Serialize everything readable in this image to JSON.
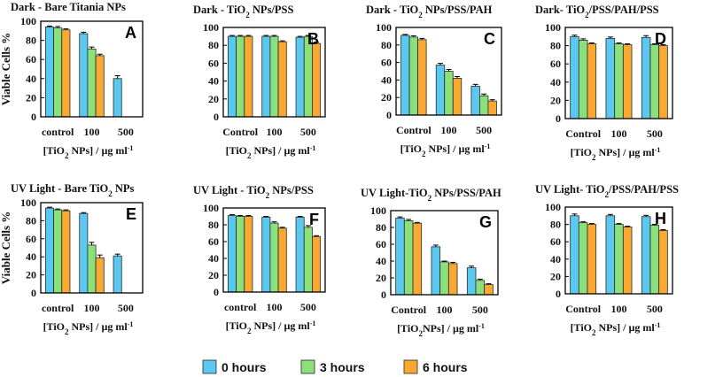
{
  "figure": {
    "series_names": [
      "0 hours",
      "3 hours",
      "6 hours"
    ],
    "series_colors": [
      "#5bc8f0",
      "#8ce07a",
      "#f9a832"
    ],
    "ylabel": "Viable Cells %"
  },
  "chart_data": [
    {
      "id": "A",
      "type": "bar",
      "title": "Dark - Bare Titania NPs",
      "label": "A",
      "categories": [
        "control",
        "100",
        "500"
      ],
      "xlabel_main": "[TiO",
      "xlabel_sub": "2",
      "xlabel_rest": " NPs] / µg ml",
      "xlabel_sup": "-1",
      "ylim": [
        0,
        100
      ],
      "yticks": [
        0,
        20,
        40,
        60,
        80,
        100
      ],
      "series": [
        {
          "name": "0 hours",
          "values": [
            94,
            87,
            40
          ],
          "errors": [
            1,
            1.5,
            3
          ]
        },
        {
          "name": "3 hours",
          "values": [
            93,
            71,
            null
          ],
          "errors": [
            1.5,
            2,
            0
          ]
        },
        {
          "name": "6 hours",
          "values": [
            91,
            64,
            null
          ],
          "errors": [
            1,
            1.5,
            0
          ]
        }
      ]
    },
    {
      "id": "B",
      "type": "bar",
      "title": "Dark - TiO2 NPs/PSS",
      "label": "B",
      "categories": [
        "Control",
        "100",
        "500"
      ],
      "xlabel_main": "[TiO",
      "xlabel_sub": "2",
      "xlabel_rest": " NPs] / µg ml",
      "xlabel_sup": "-1",
      "ylim": [
        0,
        100
      ],
      "yticks": [
        0,
        20,
        40,
        60,
        80,
        100
      ],
      "series": [
        {
          "name": "0 hours",
          "values": [
            90,
            90,
            89
          ],
          "errors": [
            1,
            1,
            1
          ]
        },
        {
          "name": "3 hours",
          "values": [
            90,
            90,
            90
          ],
          "errors": [
            1,
            1,
            1
          ]
        },
        {
          "name": "6 hours",
          "values": [
            90,
            84,
            82
          ],
          "errors": [
            1,
            1,
            1.5
          ]
        }
      ]
    },
    {
      "id": "C",
      "type": "bar",
      "title": "Dark - TiO2 NPs/PSS/PAH",
      "label": "C",
      "categories": [
        "Control",
        "100",
        "500"
      ],
      "xlabel_main": "[TiO",
      "xlabel_sub": "2",
      "xlabel_rest": " NPs] / µg ml",
      "xlabel_sup": "-1",
      "ylim": [
        0,
        100
      ],
      "yticks": [
        0,
        20,
        40,
        60,
        80,
        100
      ],
      "series": [
        {
          "name": "0 hours",
          "values": [
            91,
            57,
            33
          ],
          "errors": [
            1,
            2,
            2
          ]
        },
        {
          "name": "3 hours",
          "values": [
            89,
            50,
            22
          ],
          "errors": [
            1.5,
            2,
            2
          ]
        },
        {
          "name": "6 hours",
          "values": [
            86,
            42,
            16
          ],
          "errors": [
            1.5,
            2,
            1.5
          ]
        }
      ]
    },
    {
      "id": "D",
      "type": "bar",
      "title": "Dark- TiO2/PSS/PAH/PSS",
      "label": "D",
      "categories": [
        "Control",
        "100",
        "500"
      ],
      "xlabel_main": "[TiO",
      "xlabel_sub": "2",
      "xlabel_rest": " NPs] / µg ml",
      "xlabel_sup": "-1",
      "ylim": [
        0,
        100
      ],
      "yticks": [
        0,
        20,
        40,
        60,
        80,
        100
      ],
      "series": [
        {
          "name": "0 hours",
          "values": [
            90,
            88,
            89
          ],
          "errors": [
            1.5,
            1.5,
            2
          ]
        },
        {
          "name": "3 hours",
          "values": [
            86,
            82,
            81
          ],
          "errors": [
            1.5,
            1,
            1
          ]
        },
        {
          "name": "6 hours",
          "values": [
            82,
            81,
            80
          ],
          "errors": [
            1,
            1,
            1
          ]
        }
      ]
    },
    {
      "id": "E",
      "type": "bar",
      "title": "UV Light - Bare TiO2 NPs",
      "label": "E",
      "categories": [
        "control",
        "100",
        "500"
      ],
      "xlabel_main": "[TiO",
      "xlabel_sub": "2",
      "xlabel_rest": " NPs] / µg ml",
      "xlabel_sup": "-1",
      "ylim": [
        0,
        100
      ],
      "yticks": [
        0,
        20,
        40,
        60,
        80,
        100
      ],
      "series": [
        {
          "name": "0 hours",
          "values": [
            94,
            88,
            41
          ],
          "errors": [
            1,
            1,
            2
          ]
        },
        {
          "name": "3 hours",
          "values": [
            92,
            53,
            null
          ],
          "errors": [
            1,
            3,
            0
          ]
        },
        {
          "name": "6 hours",
          "values": [
            91,
            39,
            null
          ],
          "errors": [
            1,
            3,
            0
          ]
        }
      ]
    },
    {
      "id": "F",
      "type": "bar",
      "title": "UV Light - TiO2 NPs/PSS",
      "label": "F",
      "categories": [
        "control",
        "100",
        "500"
      ],
      "xlabel_main": "[TiO",
      "xlabel_sub": "2",
      "xlabel_rest": " NPs] / µg ml",
      "xlabel_sup": "-1",
      "ylim": [
        0,
        100
      ],
      "yticks": [
        0,
        20,
        40,
        60,
        80,
        100
      ],
      "series": [
        {
          "name": "0 hours",
          "values": [
            91,
            89,
            89
          ],
          "errors": [
            1,
            1,
            1
          ]
        },
        {
          "name": "3 hours",
          "values": [
            90,
            82,
            77
          ],
          "errors": [
            1,
            1.5,
            2
          ]
        },
        {
          "name": "6 hours",
          "values": [
            90,
            76,
            66
          ],
          "errors": [
            1,
            1,
            1
          ]
        }
      ]
    },
    {
      "id": "G",
      "type": "bar",
      "title": "UV Light-TiO2 NPs/PSS/PAH",
      "label": "G",
      "categories": [
        "Control",
        "100",
        "500"
      ],
      "xlabel_main": "[TiO",
      "xlabel_sub": "2",
      "xlabel_rest": "NPs] / µg ml",
      "xlabel_sup": "-1",
      "ylim": [
        0,
        100
      ],
      "yticks": [
        0,
        20,
        40,
        60,
        80,
        100
      ],
      "series": [
        {
          "name": "0 hours",
          "values": [
            91,
            57,
            32
          ],
          "errors": [
            1.5,
            2,
            2
          ]
        },
        {
          "name": "3 hours",
          "values": [
            88,
            39,
            17
          ],
          "errors": [
            1.5,
            1,
            1.5
          ]
        },
        {
          "name": "6 hours",
          "values": [
            85,
            37,
            12
          ],
          "errors": [
            1,
            1.5,
            1
          ]
        }
      ]
    },
    {
      "id": "H",
      "type": "bar",
      "title": "UV Light- TiO2/PSS/PAH/PSS",
      "label": "H",
      "categories": [
        "Control",
        "100",
        "500"
      ],
      "xlabel_main": "[TiO",
      "xlabel_sub": "2",
      "xlabel_rest": "  NPs] / µg ml",
      "xlabel_sup": "-1",
      "ylim": [
        0,
        100
      ],
      "yticks": [
        0,
        20,
        40,
        60,
        80,
        100
      ],
      "series": [
        {
          "name": "0 hours",
          "values": [
            90,
            90,
            89
          ],
          "errors": [
            2,
            1.5,
            1.5
          ]
        },
        {
          "name": "3 hours",
          "values": [
            82,
            80,
            79
          ],
          "errors": [
            1,
            1,
            1
          ]
        },
        {
          "name": "6 hours",
          "values": [
            80,
            77,
            73
          ],
          "errors": [
            1,
            1,
            1
          ]
        }
      ]
    }
  ]
}
